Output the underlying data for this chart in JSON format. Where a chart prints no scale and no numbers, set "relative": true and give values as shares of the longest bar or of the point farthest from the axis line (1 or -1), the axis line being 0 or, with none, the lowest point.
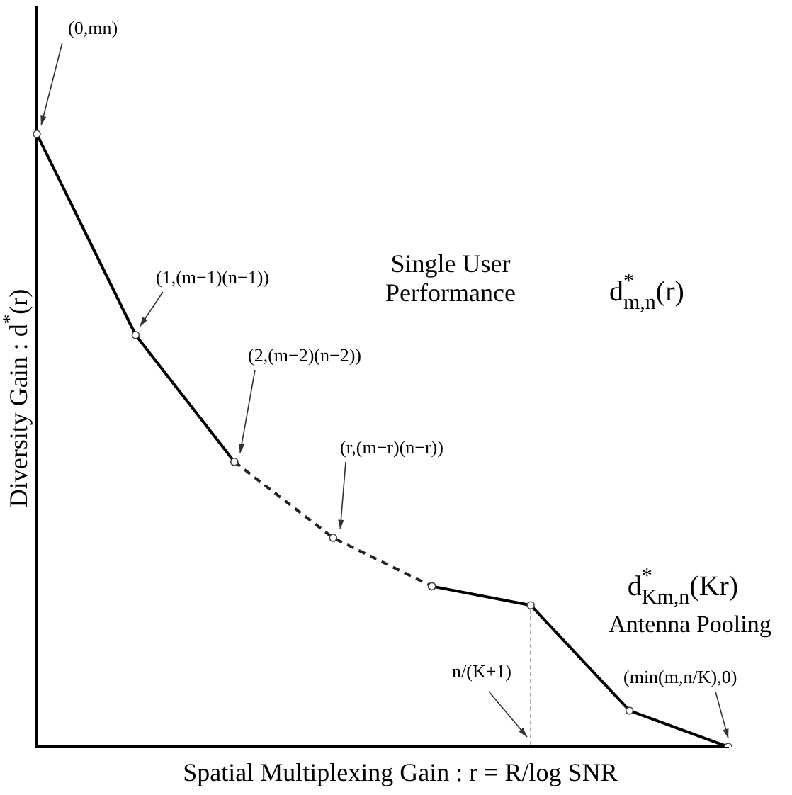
{
  "chart_data": {
    "type": "line",
    "relative": true,
    "xlabel": "Spatial Multiplexing Gain : r = R/log SNR",
    "ylabel": "Diversity Gain : d$^{*}$(r)",
    "categories": [
      null,
      null,
      null,
      null,
      null,
      null,
      null,
      null
    ],
    "series": [
      {
        "color": "#000000",
        "line_style": "solid",
        "values": [
          1,
          0.672,
          0.465,
          null,
          0.262,
          0.231,
          0.059,
          0
        ]
      },
      {
        "color": "#222222",
        "line_style": "dashed",
        "values": [
          null,
          null,
          0.465,
          0.341,
          0.262,
          null,
          null,
          null
        ]
      }
    ],
    "marker": "circle",
    "legend": false,
    "grid": false,
    "tick_labels": false,
    "annotations": [
      "(0,mn)",
      "(1,(m−1)(n−1))",
      "(2,(m−2)(n−2))",
      "(r,(m−r)(n−r))",
      "(min(m,n/K),0)",
      "Single User Performance",
      "d$^{*}$$_{m,n}$(r)",
      "d$^{*}$$_{Km,n}$(Kr)",
      "Antenna Pooling",
      "n/(K+1)"
    ]
  }
}
